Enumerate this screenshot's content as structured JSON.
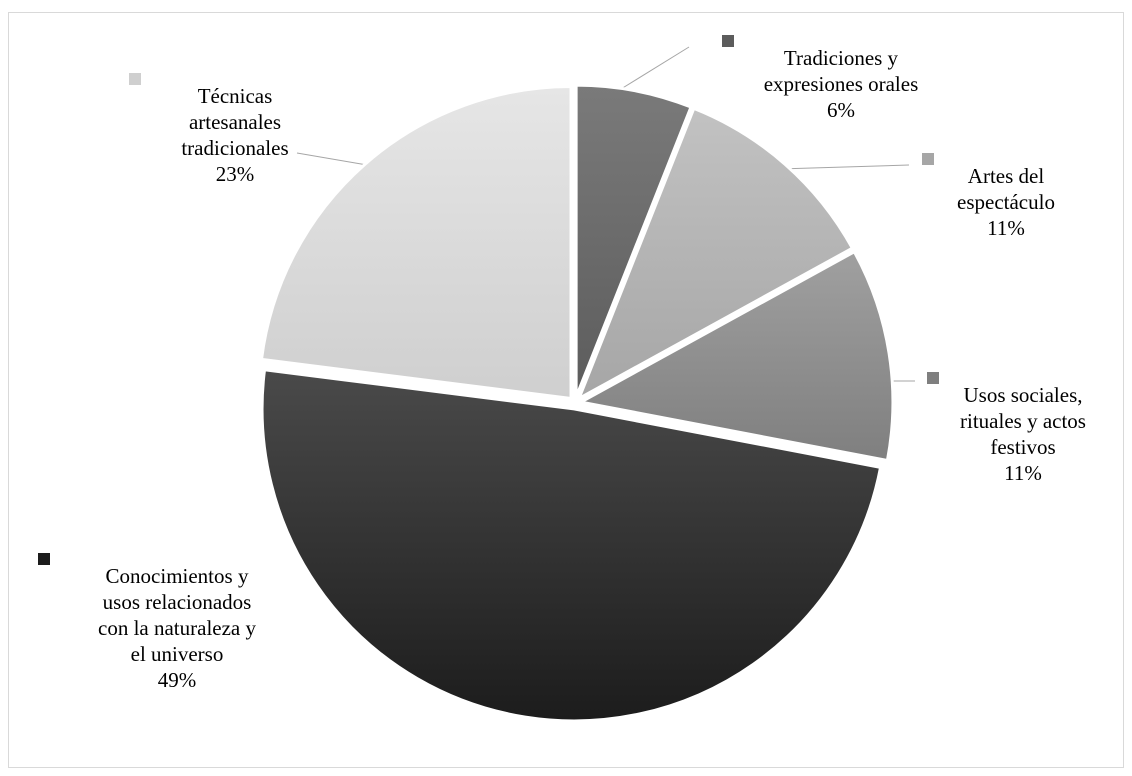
{
  "chart_data": {
    "type": "pie",
    "title": "",
    "start_angle_deg": 0,
    "direction": "clockwise",
    "labels": [
      "Tradiciones y expresiones orales",
      "Artes del espectáculo",
      "Usos sociales, rituales y actos festivos",
      "Conocimientos y usos relacionados con la naturaleza y el universo",
      "Técnicas artesanales tradicionales"
    ],
    "values": [
      6,
      11,
      11,
      49,
      23
    ],
    "percent_labels": [
      "6%",
      "11%",
      "11%",
      "49%",
      "23%"
    ],
    "label_lines": [
      [
        "Tradiciones y",
        "expresiones orales"
      ],
      [
        "Artes del",
        "espectáculo"
      ],
      [
        "Usos sociales,",
        "rituales y actos",
        "festivos"
      ],
      [
        "Conocimientos y",
        "usos relacionados",
        "con la naturaleza y",
        "el universo"
      ],
      [
        "Técnicas",
        "artesanales",
        "tradicionales"
      ]
    ],
    "colors": [
      [
        "#5c5c5c",
        "#7a7a7a"
      ],
      [
        "#a6a6a6",
        "#c2c2c2"
      ],
      [
        "#7f7f7f",
        "#a0a0a0"
      ],
      [
        "#1c1c1c",
        "#4a4a4a"
      ],
      [
        "#cfcfcf",
        "#e6e6e6"
      ]
    ],
    "legend_placement": "data-labels-with-leader-lines"
  }
}
